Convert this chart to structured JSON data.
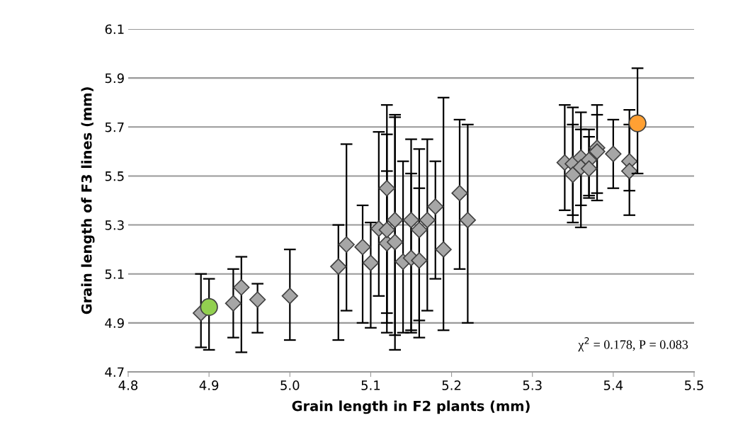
{
  "chart_data": {
    "type": "scatter",
    "xlabel": "Grain length in F2 plants (mm)",
    "ylabel": "Grain length of F3 lines (mm)",
    "xlim": [
      4.8,
      5.5
    ],
    "xticks": [
      4.8,
      4.9,
      {
        "value": 5.0,
        "label": "5.0"
      },
      5.1,
      5.2,
      5.3,
      5.4,
      5.5
    ],
    "ylim": [
      4.7,
      6.1
    ],
    "yticks": [
      4.7,
      4.9,
      5.1,
      5.3,
      5.5,
      5.7,
      5.9,
      6.1
    ],
    "grid": "y",
    "legend": false,
    "annotations": [
      "χ$^{2}$ = 0.178, P = 0.083"
    ],
    "series": [
      {
        "color": "#a6a6a6",
        "marker": "diamond",
        "x": [
          4.89,
          4.93,
          4.94,
          4.96,
          5.0,
          5.06,
          5.07,
          5.09,
          5.1,
          5.11,
          5.12,
          5.12,
          5.12,
          5.13,
          5.13,
          5.14,
          5.15,
          5.15,
          5.16,
          5.16,
          5.17,
          5.18,
          5.19,
          5.21,
          5.22,
          5.34,
          5.35,
          5.35,
          5.36,
          5.36,
          5.37,
          5.37,
          5.38,
          5.38,
          5.4,
          5.42,
          5.42
        ],
        "values": [
          4.94,
          4.98,
          5.045,
          4.995,
          5.01,
          5.13,
          5.22,
          5.21,
          5.145,
          5.285,
          5.45,
          5.225,
          5.28,
          5.32,
          5.23,
          5.15,
          5.32,
          5.165,
          5.28,
          5.155,
          5.32,
          5.375,
          5.2,
          5.43,
          5.32,
          5.555,
          5.55,
          5.505,
          5.575,
          5.535,
          5.565,
          5.53,
          5.615,
          5.6,
          5.59,
          5.56,
          5.52
        ],
        "errors": [
          [
            4.8,
            5.1
          ],
          [
            4.84,
            5.12
          ],
          [
            4.78,
            5.17
          ],
          [
            4.86,
            5.06
          ],
          [
            4.83,
            5.2
          ],
          [
            4.83,
            5.3
          ],
          [
            4.95,
            5.63
          ],
          [
            4.9,
            5.38
          ],
          [
            4.88,
            5.31
          ],
          [
            5.01,
            5.68
          ],
          [
            4.86,
            5.79
          ],
          [
            4.94,
            5.67
          ],
          [
            4.9,
            5.52
          ],
          [
            4.79,
            5.75
          ],
          [
            4.85,
            5.74
          ],
          [
            4.86,
            5.56
          ],
          [
            4.86,
            5.65
          ],
          [
            4.87,
            5.51
          ],
          [
            4.84,
            5.61
          ],
          [
            4.91,
            5.45
          ],
          [
            4.95,
            5.65
          ],
          [
            5.08,
            5.56
          ],
          [
            4.87,
            5.82
          ],
          [
            5.12,
            5.73
          ],
          [
            4.9,
            5.71
          ],
          [
            5.36,
            5.79
          ],
          [
            5.31,
            5.78
          ],
          [
            5.34,
            5.71
          ],
          [
            5.29,
            5.76
          ],
          [
            5.38,
            5.69
          ],
          [
            5.41,
            5.69
          ],
          [
            5.42,
            5.66
          ],
          [
            5.43,
            5.79
          ],
          [
            5.4,
            5.75
          ],
          [
            5.45,
            5.73
          ],
          [
            5.34,
            5.77
          ],
          [
            5.44,
            5.71
          ]
        ]
      },
      {
        "color": "#92d050",
        "marker": "circle",
        "x": [
          4.9
        ],
        "values": [
          4.965
        ],
        "errors": [
          [
            4.79,
            5.08
          ]
        ]
      },
      {
        "color": "#ffa033",
        "marker": "circle",
        "x": [
          5.43
        ],
        "values": [
          5.715
        ],
        "errors": [
          [
            5.51,
            5.94
          ]
        ]
      }
    ]
  }
}
